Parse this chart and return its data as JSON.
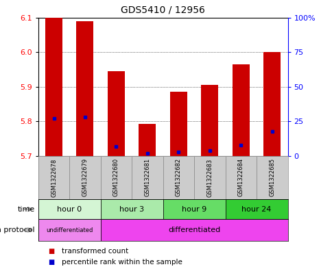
{
  "title": "GDS5410 / 12956",
  "samples": [
    "GSM1322678",
    "GSM1322679",
    "GSM1322680",
    "GSM1322681",
    "GSM1322682",
    "GSM1322683",
    "GSM1322684",
    "GSM1322685"
  ],
  "transformed_counts": [
    6.1,
    6.09,
    5.945,
    5.793,
    5.885,
    5.905,
    5.965,
    6.0
  ],
  "percentile_ranks": [
    27,
    28,
    7,
    2,
    3,
    4,
    8,
    18
  ],
  "bar_bottom": 5.7,
  "ylim": [
    5.7,
    6.1
  ],
  "right_ylim": [
    0,
    100
  ],
  "right_yticks": [
    0,
    25,
    50,
    75,
    100
  ],
  "right_yticklabels": [
    "0",
    "25",
    "50",
    "75",
    "100%"
  ],
  "left_yticks": [
    5.7,
    5.8,
    5.9,
    6.0,
    6.1
  ],
  "bar_color": "#cc0000",
  "blue_color": "#0000cc",
  "time_groups": [
    {
      "label": "hour 0",
      "start": 0,
      "end": 2,
      "color": "#d4f5d4"
    },
    {
      "label": "hour 3",
      "start": 2,
      "end": 4,
      "color": "#aaeaaa"
    },
    {
      "label": "hour 9",
      "start": 4,
      "end": 6,
      "color": "#66dd66"
    },
    {
      "label": "hour 24",
      "start": 6,
      "end": 8,
      "color": "#33cc33"
    }
  ],
  "growth_groups": [
    {
      "label": "undifferentiated",
      "start": 0,
      "end": 2,
      "color": "#ee88ee"
    },
    {
      "label": "differentiated",
      "start": 2,
      "end": 8,
      "color": "#ee44ee"
    }
  ],
  "legend_red_label": "transformed count",
  "legend_blue_label": "percentile rank within the sample",
  "time_label": "time",
  "growth_label": "growth protocol",
  "background_color": "#ffffff",
  "plot_bg_color": "#ffffff",
  "grid_color": "#000000",
  "bar_width": 0.55,
  "sample_bg": "#cccccc",
  "cell_edge": "#888888"
}
